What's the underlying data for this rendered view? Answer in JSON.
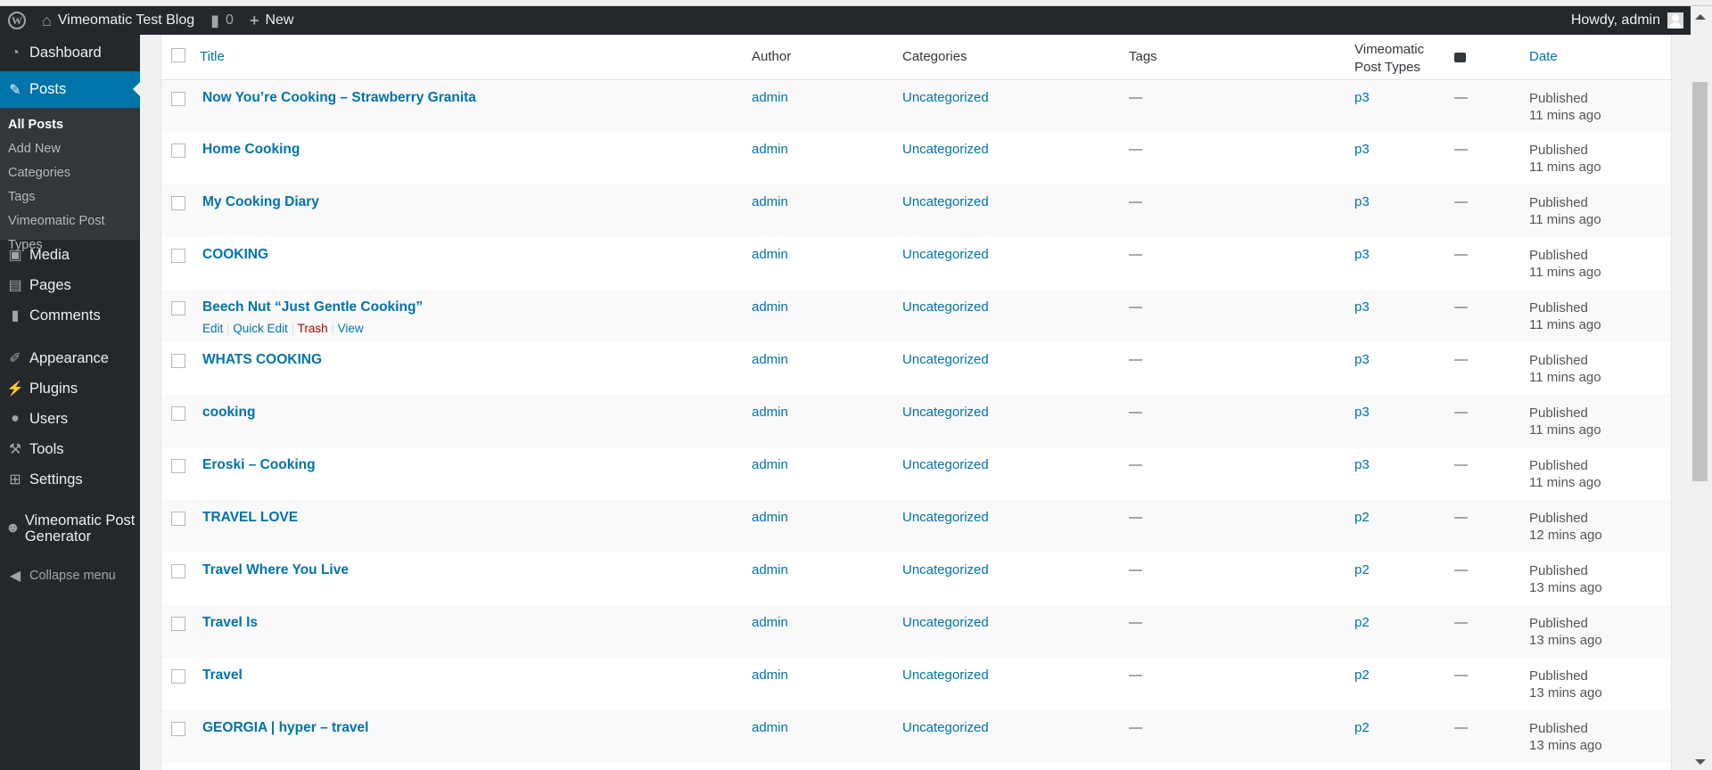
{
  "adminbar": {
    "site": "Vimeomatic Test Blog",
    "comments": "0",
    "new": "New",
    "howdy": "Howdy, admin"
  },
  "sidebar": {
    "items": [
      {
        "label": "Dashboard",
        "icon": "dashboard-icon"
      },
      {
        "label": "Posts",
        "icon": "pin-icon",
        "active": true
      },
      {
        "label": "Media",
        "icon": "media-icon"
      },
      {
        "label": "Pages",
        "icon": "pages-icon"
      },
      {
        "label": "Comments",
        "icon": "comment-icon"
      },
      {
        "label": "Appearance",
        "icon": "brush-icon"
      },
      {
        "label": "Plugins",
        "icon": "plugin-icon"
      },
      {
        "label": "Users",
        "icon": "user-icon"
      },
      {
        "label": "Tools",
        "icon": "wrench-icon"
      },
      {
        "label": "Settings",
        "icon": "settings-icon"
      },
      {
        "label": "Vimeomatic Post Generator",
        "icon": "robot-icon"
      },
      {
        "label": "Collapse menu",
        "icon": "collapse-icon"
      }
    ],
    "submenu": [
      "All Posts",
      "Add New",
      "Categories",
      "Tags",
      "Vimeomatic Post Types"
    ]
  },
  "table": {
    "headers": {
      "title": "Title",
      "author": "Author",
      "categories": "Categories",
      "tags": "Tags",
      "vpt": "Vimeomatic Post Types",
      "date": "Date"
    },
    "row_actions": [
      "Edit",
      "Quick Edit",
      "Trash",
      "View"
    ],
    "rows": [
      {
        "title": "Now You’re Cooking – Strawberry Granita",
        "author": "admin",
        "cat": "Uncategorized",
        "tags": "—",
        "vpt": "p3",
        "comments": "—",
        "status": "Published",
        "ago": "11 mins ago"
      },
      {
        "title": "Home Cooking",
        "author": "admin",
        "cat": "Uncategorized",
        "tags": "—",
        "vpt": "p3",
        "comments": "—",
        "status": "Published",
        "ago": "11 mins ago"
      },
      {
        "title": "My Cooking Diary",
        "author": "admin",
        "cat": "Uncategorized",
        "tags": "—",
        "vpt": "p3",
        "comments": "—",
        "status": "Published",
        "ago": "11 mins ago"
      },
      {
        "title": "COOKING",
        "author": "admin",
        "cat": "Uncategorized",
        "tags": "—",
        "vpt": "p3",
        "comments": "—",
        "status": "Published",
        "ago": "11 mins ago"
      },
      {
        "title": "Beech Nut “Just Gentle Cooking”",
        "author": "admin",
        "cat": "Uncategorized",
        "tags": "—",
        "vpt": "p3",
        "comments": "—",
        "status": "Published",
        "ago": "11 mins ago",
        "hover": true
      },
      {
        "title": "WHATS COOKING",
        "author": "admin",
        "cat": "Uncategorized",
        "tags": "—",
        "vpt": "p3",
        "comments": "—",
        "status": "Published",
        "ago": "11 mins ago"
      },
      {
        "title": "cooking",
        "author": "admin",
        "cat": "Uncategorized",
        "tags": "—",
        "vpt": "p3",
        "comments": "—",
        "status": "Published",
        "ago": "11 mins ago"
      },
      {
        "title": "Eroski – Cooking",
        "author": "admin",
        "cat": "Uncategorized",
        "tags": "—",
        "vpt": "p3",
        "comments": "—",
        "status": "Published",
        "ago": "11 mins ago"
      },
      {
        "title": "TRAVEL LOVE",
        "author": "admin",
        "cat": "Uncategorized",
        "tags": "—",
        "vpt": "p2",
        "comments": "—",
        "status": "Published",
        "ago": "12 mins ago"
      },
      {
        "title": "Travel Where You Live",
        "author": "admin",
        "cat": "Uncategorized",
        "tags": "—",
        "vpt": "p2",
        "comments": "—",
        "status": "Published",
        "ago": "13 mins ago"
      },
      {
        "title": "Travel Is",
        "author": "admin",
        "cat": "Uncategorized",
        "tags": "—",
        "vpt": "p2",
        "comments": "—",
        "status": "Published",
        "ago": "13 mins ago"
      },
      {
        "title": "Travel",
        "author": "admin",
        "cat": "Uncategorized",
        "tags": "—",
        "vpt": "p2",
        "comments": "—",
        "status": "Published",
        "ago": "13 mins ago"
      },
      {
        "title": "GEORGIA | hyper – travel",
        "author": "admin",
        "cat": "Uncategorized",
        "tags": "—",
        "vpt": "p2",
        "comments": "—",
        "status": "Published",
        "ago": "13 mins ago"
      }
    ]
  },
  "colors": {
    "adminbar": "#23282d",
    "accent": "#0073aa",
    "link": "#0073aa",
    "trash": "#a00"
  }
}
